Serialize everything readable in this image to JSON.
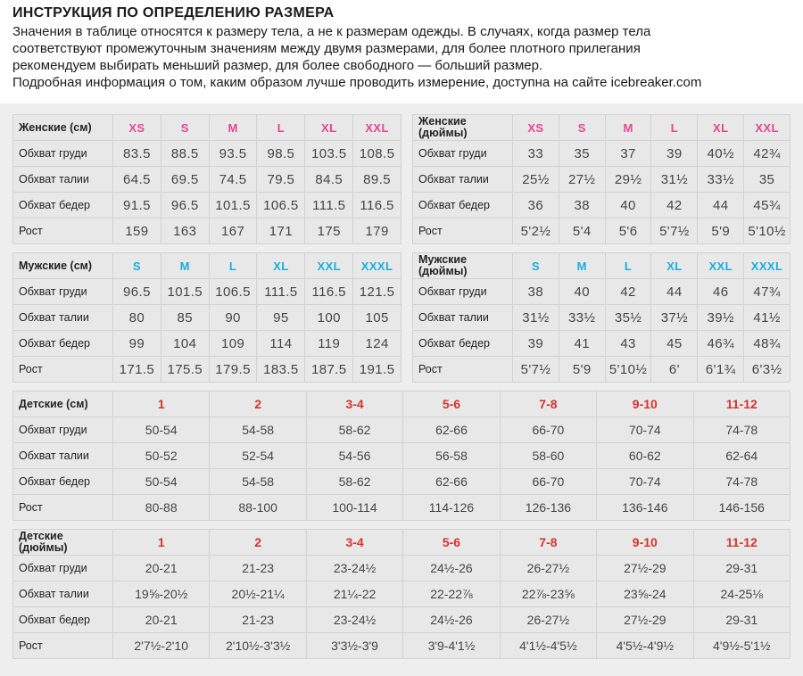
{
  "intro": {
    "title": "ИНСТРУКЦИЯ ПО ОПРЕДЕЛЕНИЮ РАЗМЕРА",
    "lines": [
      "Значения в таблице относятся к размеру тела, а не к размерам одежды. В случаях, когда размер тела",
      "соответствуют промежуточным значениям между двумя размерами, для более плотного прилегания",
      "рекомендуем выбирать меньший размер, для более свободного — больший размер.",
      "Подробная информация о том, каким образом лучше проводить измерение, доступна на сайте icebreaker.com"
    ]
  },
  "colors": {
    "women": "#e5458f",
    "men": "#19aee0",
    "kids": "#d8322f"
  },
  "tables": [
    {
      "id": "t1",
      "accent": "women",
      "title": "Женские (см)",
      "sizes": [
        "XS",
        "S",
        "M",
        "L",
        "XL",
        "XXL"
      ],
      "rows": [
        {
          "label": "Обхват груди",
          "values": [
            "83.5",
            "88.5",
            "93.5",
            "98.5",
            "103.5",
            "108.5"
          ]
        },
        {
          "label": "Обхват талии",
          "values": [
            "64.5",
            "69.5",
            "74.5",
            "79.5",
            "84.5",
            "89.5"
          ]
        },
        {
          "label": "Обхват бедер",
          "values": [
            "91.5",
            "96.5",
            "101.5",
            "106.5",
            "111.5",
            "116.5"
          ]
        },
        {
          "label": "Рост",
          "values": [
            "159",
            "163",
            "167",
            "171",
            "175",
            "179"
          ]
        }
      ]
    },
    {
      "id": "t2",
      "accent": "women",
      "title": "Женские (дюймы)",
      "sizes": [
        "XS",
        "S",
        "M",
        "L",
        "XL",
        "XXL"
      ],
      "rows": [
        {
          "label": "Обхват груди",
          "values": [
            "33",
            "35",
            "37",
            "39",
            "40½",
            "42¾"
          ]
        },
        {
          "label": "Обхват талии",
          "values": [
            "25½",
            "27½",
            "29½",
            "31½",
            "33½",
            "35"
          ]
        },
        {
          "label": "Обхват бедер",
          "values": [
            "36",
            "38",
            "40",
            "42",
            "44",
            "45¾"
          ]
        },
        {
          "label": "Рост",
          "values": [
            "5'2½",
            "5'4",
            "5'6",
            "5'7½",
            "5'9",
            "5'10½"
          ]
        }
      ]
    },
    {
      "id": "t3",
      "accent": "men",
      "title": "Мужские (см)",
      "sizes": [
        "S",
        "M",
        "L",
        "XL",
        "XXL",
        "XXXL"
      ],
      "rows": [
        {
          "label": "Обхват груди",
          "values": [
            "96.5",
            "101.5",
            "106.5",
            "111.5",
            "116.5",
            "121.5"
          ]
        },
        {
          "label": "Обхват талии",
          "values": [
            "80",
            "85",
            "90",
            "95",
            "100",
            "105"
          ]
        },
        {
          "label": "Обхват бедер",
          "values": [
            "99",
            "104",
            "109",
            "114",
            "119",
            "124"
          ]
        },
        {
          "label": "Рост",
          "values": [
            "171.5",
            "175.5",
            "179.5",
            "183.5",
            "187.5",
            "191.5"
          ]
        }
      ]
    },
    {
      "id": "t4",
      "accent": "men",
      "title": "Мужские (дюймы)",
      "sizes": [
        "S",
        "M",
        "L",
        "XL",
        "XXL",
        "XXXL"
      ],
      "rows": [
        {
          "label": "Обхват груди",
          "values": [
            "38",
            "40",
            "42",
            "44",
            "46",
            "47¾"
          ]
        },
        {
          "label": "Обхват талии",
          "values": [
            "31½",
            "33½",
            "35½",
            "37½",
            "39½",
            "41½"
          ]
        },
        {
          "label": "Обхват бедер",
          "values": [
            "39",
            "41",
            "43",
            "45",
            "46¾",
            "48¾"
          ]
        },
        {
          "label": "Рост",
          "values": [
            "5'7½",
            "5'9",
            "5'10½",
            "6'",
            "6'1¾",
            "6'3½"
          ]
        }
      ]
    },
    {
      "id": "t5",
      "accent": "kids",
      "title": "Детские (см)",
      "sizes": [
        "1",
        "2",
        "3-4",
        "5-6",
        "7-8",
        "9-10",
        "11-12"
      ],
      "rows": [
        {
          "label": "Обхват груди",
          "values": [
            "50-54",
            "54-58",
            "58-62",
            "62-66",
            "66-70",
            "70-74",
            "74-78"
          ]
        },
        {
          "label": "Обхват талии",
          "values": [
            "50-52",
            "52-54",
            "54-56",
            "56-58",
            "58-60",
            "60-62",
            "62-64"
          ]
        },
        {
          "label": "Обхват бедер",
          "values": [
            "50-54",
            "54-58",
            "58-62",
            "62-66",
            "66-70",
            "70-74",
            "74-78"
          ]
        },
        {
          "label": "Рост",
          "values": [
            "80-88",
            "88-100",
            "100-114",
            "114-126",
            "126-136",
            "136-146",
            "146-156"
          ]
        }
      ]
    },
    {
      "id": "t6",
      "accent": "kids",
      "title": "Детские (дюймы)",
      "sizes": [
        "1",
        "2",
        "3-4",
        "5-6",
        "7-8",
        "9-10",
        "11-12"
      ],
      "rows": [
        {
          "label": "Обхват груди",
          "values": [
            "20-21",
            "21-23",
            "23-24½",
            "24½-26",
            "26-27½",
            "27½-29",
            "29-31"
          ]
        },
        {
          "label": "Обхват талии",
          "values": [
            "19⅝-20½",
            "20½-21¼",
            "21¼-22",
            "22-22⅞",
            "22⅞-23⅝",
            "23⅝-24",
            "24-25⅛"
          ]
        },
        {
          "label": "Обхват бедер",
          "values": [
            "20-21",
            "21-23",
            "23-24½",
            "24½-26",
            "26-27½",
            "27½-29",
            "29-31"
          ]
        },
        {
          "label": "Рост",
          "values": [
            "2'7½-2'10",
            "2'10½-3'3½",
            "3'3½-3'9",
            "3'9-4'1½",
            "4'1½-4'5½",
            "4'5½-4'9½",
            "4'9½-5'1½"
          ]
        }
      ]
    }
  ]
}
